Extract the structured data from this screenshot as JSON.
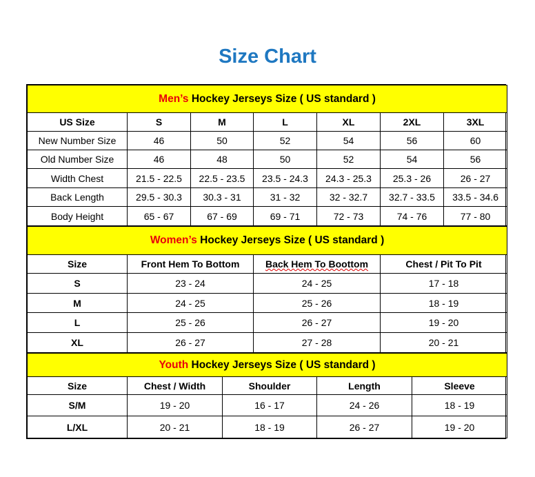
{
  "title": "Size Chart",
  "colors": {
    "title": "#1f78c1",
    "section_bg": "#ffff00",
    "section_accent": "#e8000b"
  },
  "sections": [
    {
      "accent": "Men’s",
      "heading": " Hockey Jerseys Size ( US standard )",
      "columns": [
        "US Size",
        "S",
        "M",
        "L",
        "XL",
        "2XL",
        "3XL"
      ],
      "rows": [
        [
          "New Number Size",
          "46",
          "50",
          "52",
          "54",
          "56",
          "60"
        ],
        [
          "Old Number Size",
          "46",
          "48",
          "50",
          "52",
          "54",
          "56"
        ],
        [
          "Width Chest",
          "21.5 - 22.5",
          "22.5 - 23.5",
          "23.5 - 24.3",
          "24.3 - 25.3",
          "25.3 - 26",
          "26 - 27"
        ],
        [
          "Back Length",
          "29.5 - 30.3",
          "30.3 - 31",
          "31 - 32",
          "32 - 32.7",
          "32.7 - 33.5",
          "33.5 - 34.6"
        ],
        [
          "Body Height",
          "65 - 67",
          "67 - 69",
          "69 - 71",
          "72 - 73",
          "74 - 76",
          "77 - 80"
        ]
      ]
    },
    {
      "accent": "Women’s",
      "heading": " Hockey Jerseys Size ( US standard )",
      "columns": [
        "Size",
        "Front Hem To Bottom",
        "Back Hem To Boottom",
        "Chest / Pit To Pit"
      ],
      "rows": [
        [
          "S",
          "23 - 24",
          "24 - 25",
          "17 - 18"
        ],
        [
          "M",
          "24 - 25",
          "25 - 26",
          "18 - 19"
        ],
        [
          "L",
          "25 - 26",
          "26 - 27",
          "19 - 20"
        ],
        [
          "XL",
          "26 - 27",
          "27 - 28",
          "20 - 21"
        ]
      ]
    },
    {
      "accent": "Youth",
      "heading": " Hockey Jerseys Size ( US standard )",
      "columns": [
        "Size",
        "Chest / Width",
        "Shoulder",
        "Length",
        "Sleeve"
      ],
      "rows": [
        [
          "S/M",
          "19 - 20",
          "16 - 17",
          "24 - 26",
          "18 - 19"
        ],
        [
          "L/XL",
          "20 - 21",
          "18 - 19",
          "26 - 27",
          "19 - 20"
        ]
      ]
    }
  ]
}
